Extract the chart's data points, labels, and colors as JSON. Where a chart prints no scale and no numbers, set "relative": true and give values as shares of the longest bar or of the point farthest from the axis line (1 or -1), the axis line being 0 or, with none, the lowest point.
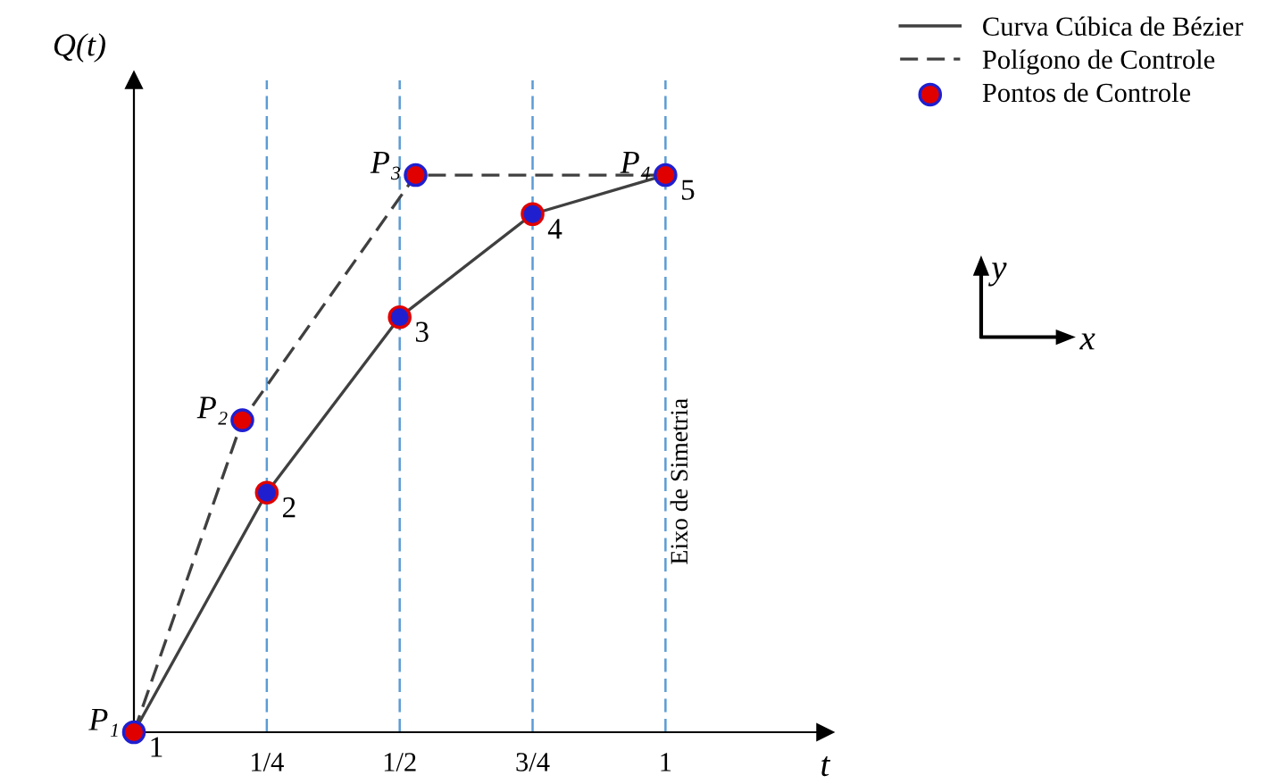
{
  "chart_data": {
    "type": "line",
    "relative": true,
    "xlabel": "t",
    "ylabel": "Q(t)",
    "xlim": [
      0,
      1.3
    ],
    "xticks": [
      {
        "value": 0.25,
        "label": "1/4"
      },
      {
        "value": 0.5,
        "label": "1/2"
      },
      {
        "value": 0.75,
        "label": "3/4"
      },
      1
    ],
    "tick_labels": "x",
    "grid": false,
    "legend": "top right",
    "series": [
      {
        "name": "Curva Cúbica de Bézier",
        "line_style": "solid",
        "color": "#404040",
        "x": [
          0,
          0.25,
          0.5,
          0.75,
          1
        ],
        "values": [
          0,
          0.43,
          0.745,
          0.93,
          1
        ]
      },
      {
        "name": "Polígono de Controle",
        "line_style": "dashed",
        "color": "#404040",
        "x": [
          0,
          0.204,
          0.53,
          1
        ],
        "values": [
          0,
          0.56,
          1,
          1
        ]
      },
      {
        "type": "scatter",
        "marker": "circle",
        "color": "#1f1fd0",
        "x": [
          0.25,
          0.5,
          0.75
        ],
        "values": [
          0.43,
          0.745,
          0.93
        ]
      },
      {
        "name": "Pontos de Controle",
        "type": "scatter",
        "marker": "circle",
        "color": "#e00000",
        "x": [
          0,
          0.204,
          0.53,
          1
        ],
        "values": [
          0,
          0.56,
          1,
          1
        ]
      }
    ],
    "ref_lines": [
      {
        "axis": "x",
        "value": 0.25,
        "color": "#5b9bd5",
        "line_style": "dashed"
      },
      {
        "axis": "x",
        "value": 0.5,
        "color": "#5b9bd5",
        "line_style": "dashed"
      },
      {
        "axis": "x",
        "value": 0.75,
        "color": "#5b9bd5",
        "line_style": "dashed"
      },
      {
        "axis": "x",
        "value": 1,
        "color": "#5b9bd5",
        "line_style": "dashed",
        "label": "Eixo de Simetria"
      }
    ],
    "annotations": [
      {
        "text": "P₁",
        "x": 0,
        "y": 0
      },
      {
        "text": "P₂",
        "x": 0.204,
        "y": 0.56
      },
      {
        "text": "P₃",
        "x": 0.53,
        "y": 1
      },
      {
        "text": "P₄",
        "x": 1,
        "y": 1
      },
      {
        "text": "1",
        "x": 0,
        "y": 0
      },
      {
        "text": "2",
        "x": 0.25,
        "y": 0.43
      },
      {
        "text": "3",
        "x": 0.5,
        "y": 0.745
      },
      {
        "text": "4",
        "x": 0.75,
        "y": 0.93
      },
      {
        "text": "5",
        "x": 1,
        "y": 1
      },
      "y",
      "x"
    ]
  }
}
